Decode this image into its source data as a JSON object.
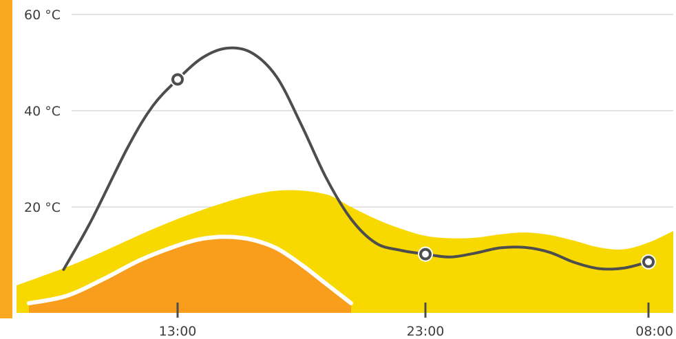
{
  "chart_data": {
    "type": "area",
    "y_axis": {
      "ticks": [
        {
          "value": 20,
          "label": "20 °C"
        },
        {
          "value": 40,
          "label": "40 °C"
        },
        {
          "value": 60,
          "label": "60 °C"
        }
      ],
      "range": [
        -2,
        63
      ]
    },
    "x_axis": {
      "ticks": [
        {
          "value": 13,
          "label": "13:00"
        },
        {
          "value": 23,
          "label": "23:00"
        },
        {
          "value": 32,
          "label": "08:00"
        }
      ],
      "range": [
        6.5,
        33
      ]
    },
    "grid": true,
    "series": [
      {
        "kind": "area",
        "fill": "#f7d900",
        "points": [
          [
            6.5,
            3.7
          ],
          [
            9,
            8.5
          ],
          [
            12,
            15.4
          ],
          [
            14,
            19.4
          ],
          [
            16,
            22.5
          ],
          [
            17.5,
            23.5
          ],
          [
            19,
            22.6
          ],
          [
            20,
            20
          ],
          [
            21,
            17.5
          ],
          [
            22,
            15.5
          ],
          [
            23,
            14
          ],
          [
            24,
            13.5
          ],
          [
            25,
            13.6
          ],
          [
            26,
            14.3
          ],
          [
            27,
            14.7
          ],
          [
            28,
            14.2
          ],
          [
            29,
            13
          ],
          [
            30,
            11.6
          ],
          [
            31,
            11.2
          ],
          [
            32,
            12.6
          ],
          [
            33,
            15
          ]
        ]
      },
      {
        "kind": "area",
        "fill": "#f99d1c",
        "stroke": "#ffffff",
        "points": [
          [
            7,
            0
          ],
          [
            8.5,
            1.5
          ],
          [
            10,
            5
          ],
          [
            11.5,
            9
          ],
          [
            13,
            12
          ],
          [
            14,
            13.4
          ],
          [
            15,
            13.8
          ],
          [
            16,
            13.2
          ],
          [
            17,
            11.4
          ],
          [
            18,
            8
          ],
          [
            19,
            4
          ],
          [
            20,
            0
          ]
        ]
      },
      {
        "kind": "line",
        "stroke": "#4d4d4d",
        "points": [
          [
            8.4,
            7
          ],
          [
            9.5,
            17
          ],
          [
            11,
            32.5
          ],
          [
            12,
            41
          ],
          [
            13,
            46.5
          ],
          [
            14,
            51
          ],
          [
            15,
            53
          ],
          [
            16,
            52
          ],
          [
            17,
            47
          ],
          [
            18,
            37
          ],
          [
            19,
            26
          ],
          [
            20,
            17.5
          ],
          [
            21,
            12.5
          ],
          [
            22,
            11
          ],
          [
            23,
            10.2
          ],
          [
            24,
            9.6
          ],
          [
            25,
            10.4
          ],
          [
            26,
            11.5
          ],
          [
            27,
            11.6
          ],
          [
            28,
            10.6
          ],
          [
            29,
            8.5
          ],
          [
            30,
            7.2
          ],
          [
            31,
            7.3
          ],
          [
            32,
            8.6
          ]
        ]
      }
    ],
    "markers": [
      {
        "x": 13,
        "y": 46.5
      },
      {
        "x": 23,
        "y": 10.2
      },
      {
        "x": 32,
        "y": 8.6
      }
    ]
  }
}
